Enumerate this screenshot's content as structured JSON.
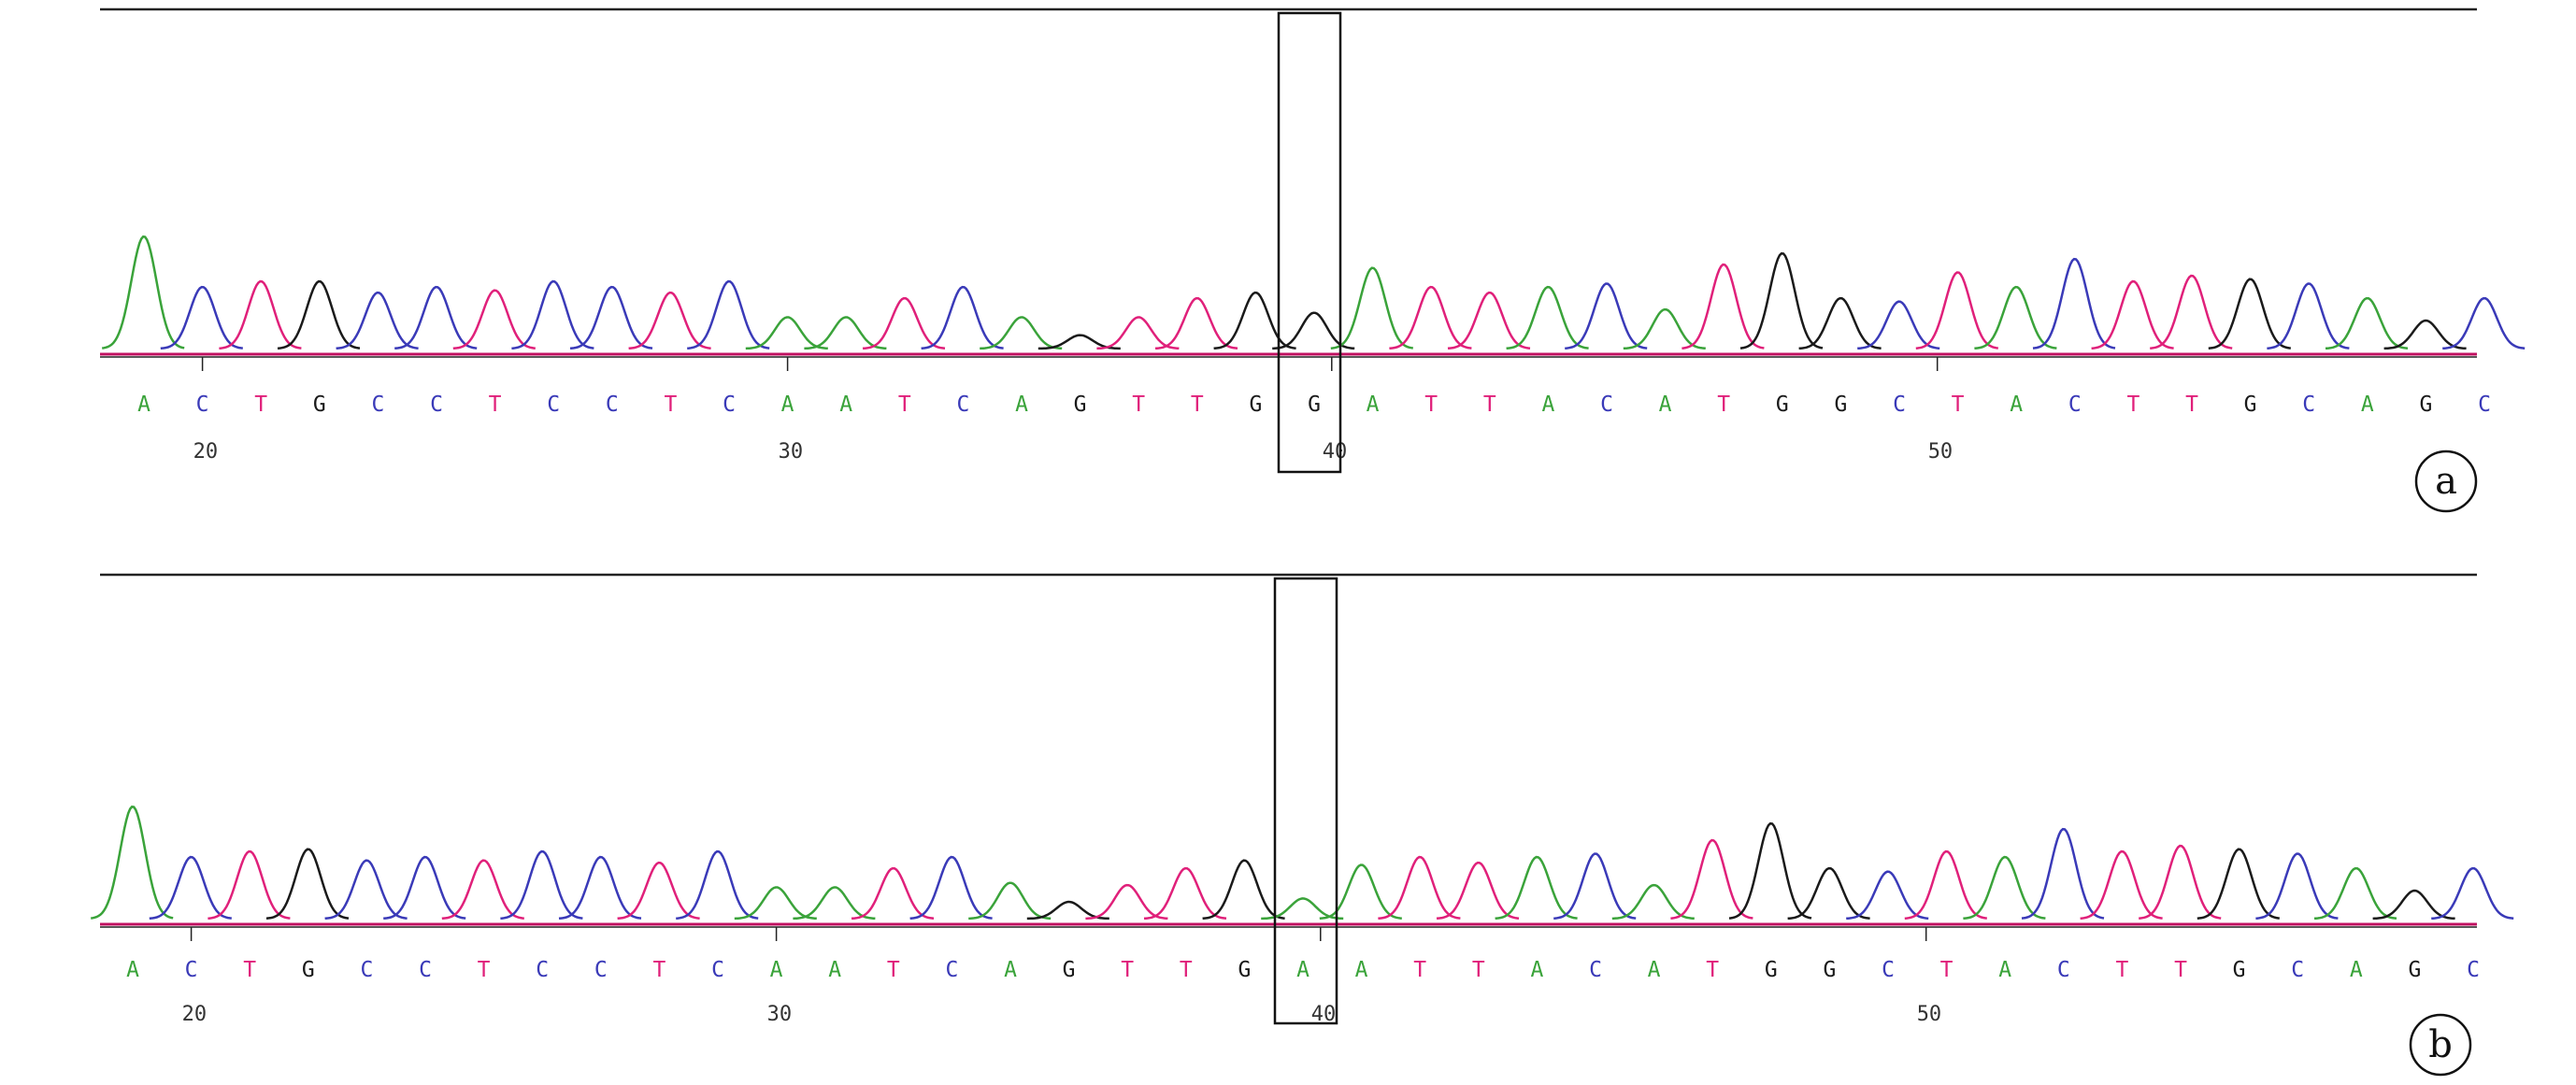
{
  "panels": [
    {
      "id": "a",
      "label": "a",
      "bases": [
        "A",
        "C",
        "T",
        "G",
        "C",
        "C",
        "T",
        "C",
        "C",
        "T",
        "C",
        "A",
        "A",
        "T",
        "C",
        "A",
        "G",
        "T",
        "T",
        "G",
        "G",
        "A",
        "T",
        "T",
        "A",
        "C",
        "A",
        "T",
        "G",
        "G",
        "C",
        "T",
        "A",
        "C",
        "T",
        "T",
        "G",
        "C",
        "A",
        "G",
        "C"
      ],
      "highlighted_base_index": 20,
      "highlighted_base": "G",
      "positions": [
        "20",
        "30",
        "40",
        "50"
      ]
    },
    {
      "id": "b",
      "label": "b",
      "bases": [
        "A",
        "C",
        "T",
        "G",
        "C",
        "C",
        "T",
        "C",
        "C",
        "T",
        "C",
        "A",
        "A",
        "T",
        "C",
        "A",
        "G",
        "T",
        "T",
        "G",
        "A",
        "A",
        "T",
        "T",
        "A",
        "C",
        "A",
        "T",
        "G",
        "G",
        "C",
        "T",
        "A",
        "C",
        "T",
        "T",
        "G",
        "C",
        "A",
        "G",
        "C"
      ],
      "highlighted_base_index": 20,
      "highlighted_base": "A",
      "positions": [
        "20",
        "30",
        "40",
        "50"
      ]
    }
  ],
  "colors": {
    "A": "#3aa33a",
    "C": "#3a3ab8",
    "G": "#1a1a1a",
    "T": "#e0207a",
    "baseline": "#c01060"
  }
}
